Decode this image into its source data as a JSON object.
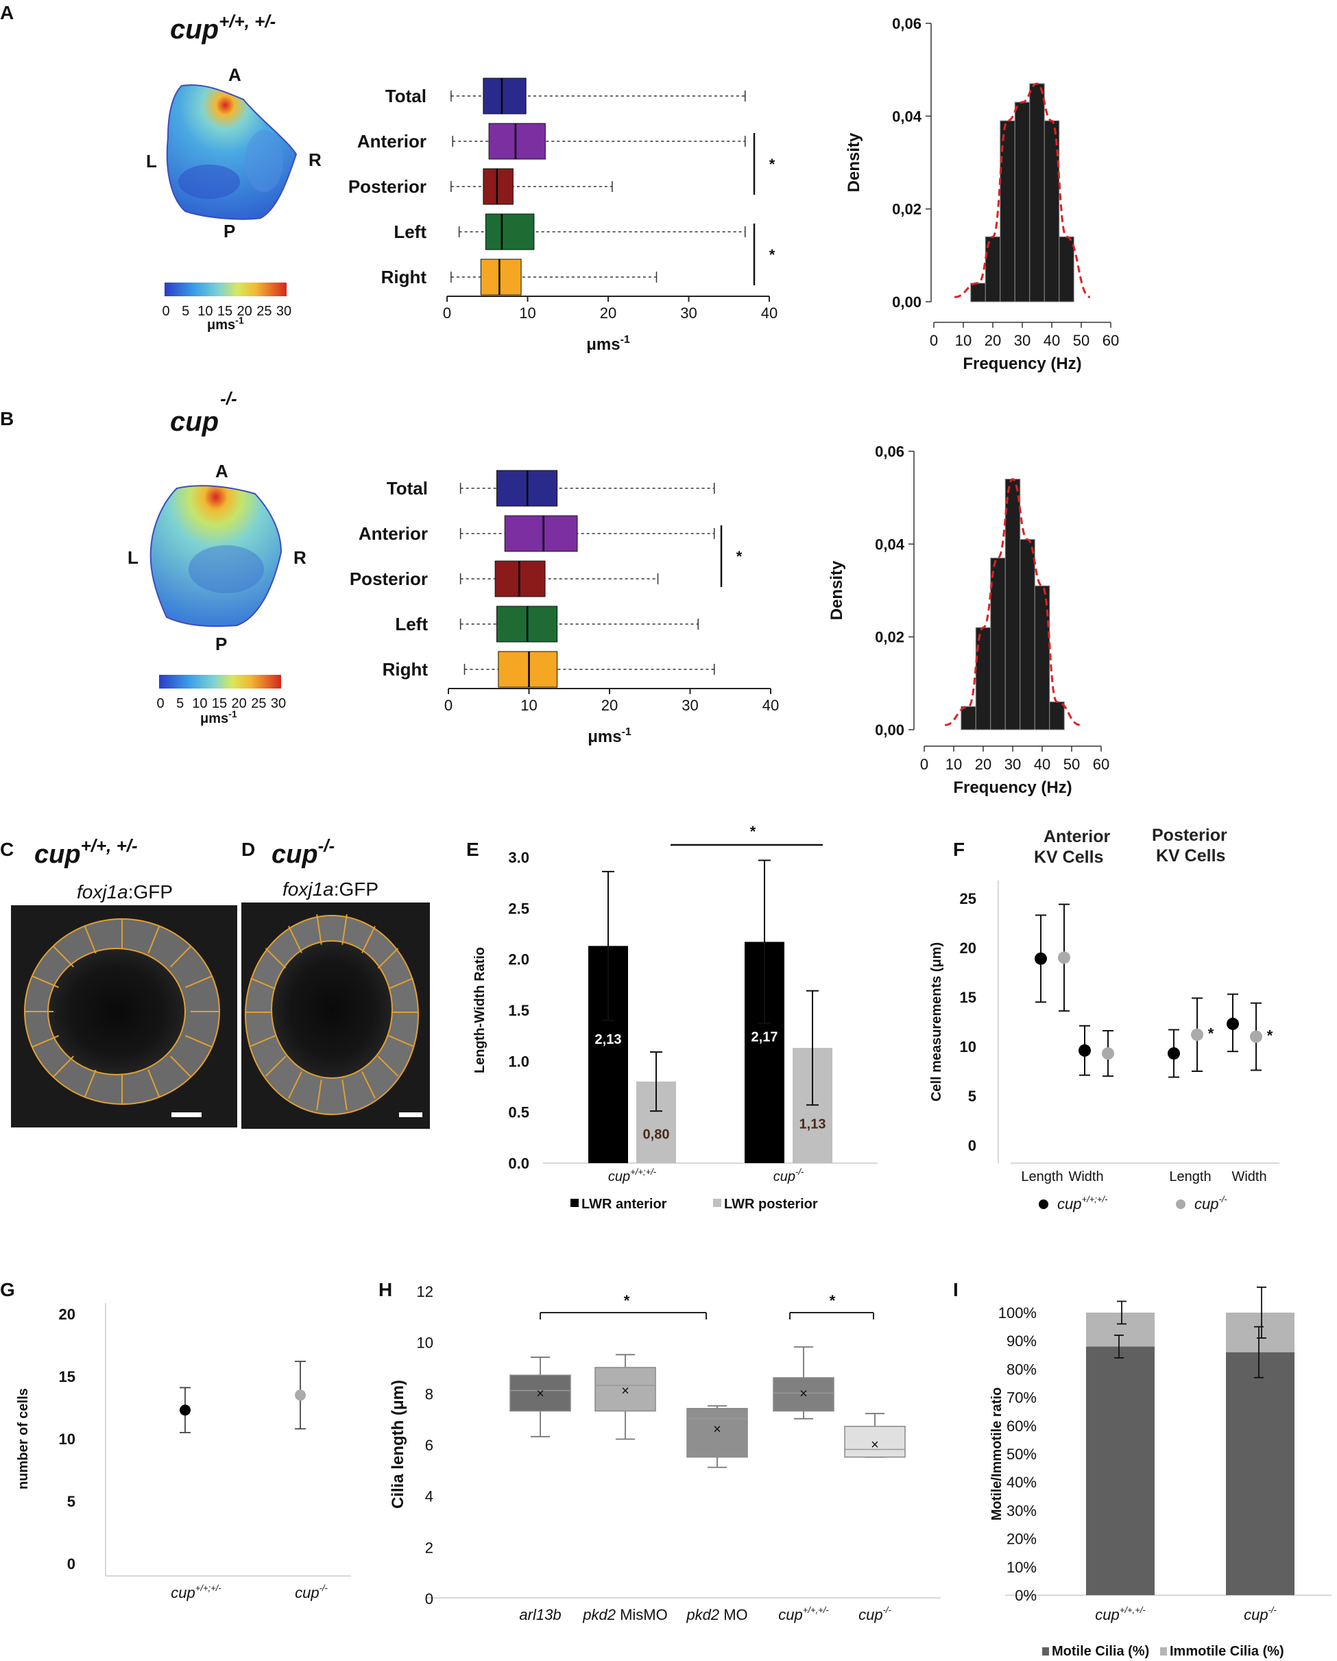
{
  "panels": {
    "A": {
      "label": "A",
      "genotype_base": "cup",
      "genotype_sup": "+/+, +/-",
      "heatmap": {
        "dir_top": "A",
        "dir_bottom": "P",
        "dir_left": "L",
        "dir_right": "R",
        "scale_ticks": [
          "0",
          "5",
          "10",
          "15",
          "20",
          "25",
          "30"
        ],
        "scale_unit": "μms",
        "scale_unit_sup": "-1"
      }
    },
    "B": {
      "label": "B",
      "genotype_base": "cup",
      "genotype_sup": "-/-",
      "heatmap": {
        "dir_top": "A",
        "dir_bottom": "P",
        "dir_left": "L",
        "dir_right": "R",
        "scale_ticks": [
          "0",
          "5",
          "10",
          "15",
          "20",
          "25",
          "30"
        ],
        "scale_unit": "μms",
        "scale_unit_sup": "-1"
      }
    },
    "C": {
      "label": "C",
      "genotype_base": "cup",
      "genotype_sup": "+/+, +/-",
      "marker": "foxj1a",
      "marker_suffix": ":GFP"
    },
    "D": {
      "label": "D",
      "genotype_base": "cup",
      "genotype_sup": "-/-",
      "marker": "foxj1a",
      "marker_suffix": ":GFP"
    },
    "E": {
      "label": "E"
    },
    "F": {
      "label": "F",
      "heading_anterior_1": "Anterior",
      "heading_anterior_2": "KV Cells",
      "heading_posterior_1": "Posterior",
      "heading_posterior_2": "KV Cells"
    },
    "G": {
      "label": "G"
    },
    "H": {
      "label": "H"
    },
    "I": {
      "label": "I"
    }
  },
  "chart_data": [
    {
      "id": "A_boxplot",
      "type": "boxplot",
      "categories": [
        "Total",
        "Anterior",
        "Posterior",
        "Left",
        "Right"
      ],
      "colors": [
        "#2a2a8c",
        "#7b2fa0",
        "#8b1a1a",
        "#1e6b34",
        "#f5a623"
      ],
      "whisker_low": [
        0.5,
        0.7,
        0.5,
        1.5,
        0.5
      ],
      "q1": [
        4.5,
        5.2,
        4.5,
        4.8,
        4.2
      ],
      "median": [
        6.8,
        8.5,
        6.2,
        6.8,
        6.5
      ],
      "q3": [
        9.8,
        12.2,
        8.2,
        10.8,
        9.2
      ],
      "whisker_high": [
        37,
        37,
        20.5,
        37,
        26
      ],
      "xlim": [
        0,
        40
      ],
      "xticks": [
        "0",
        "10",
        "20",
        "30",
        "40"
      ],
      "xlabel": "μms",
      "xlabel_sup": "-1",
      "significance": [
        {
          "pair": [
            "Anterior",
            "Posterior"
          ],
          "mark": "*"
        },
        {
          "pair": [
            "Left",
            "Right"
          ],
          "mark": "*"
        }
      ]
    },
    {
      "id": "A_histogram",
      "type": "bar",
      "x": [
        15,
        20,
        25,
        30,
        35,
        40,
        45
      ],
      "bin_width": 5,
      "values": [
        0.004,
        0.014,
        0.039,
        0.043,
        0.047,
        0.039,
        0.014
      ],
      "fit_curve": true,
      "xlim": [
        0,
        60
      ],
      "ylim": [
        0,
        0.06
      ],
      "xticks": [
        "0",
        "10",
        "20",
        "30",
        "40",
        "50",
        "60"
      ],
      "yticks": [
        "0,00",
        "0,02",
        "0,04",
        "0,06"
      ],
      "xlabel": "Frequency (Hz)",
      "ylabel": "Density"
    },
    {
      "id": "B_boxplot",
      "type": "boxplot",
      "categories": [
        "Total",
        "Anterior",
        "Posterior",
        "Left",
        "Right"
      ],
      "colors": [
        "#2a2a8c",
        "#7b2fa0",
        "#8b1a1a",
        "#1e6b34",
        "#f5a623"
      ],
      "whisker_low": [
        1.5,
        1.5,
        1.5,
        1.5,
        2
      ],
      "q1": [
        6,
        7,
        5.8,
        6,
        6.2
      ],
      "median": [
        9.8,
        11.8,
        8.8,
        9.8,
        10
      ],
      "q3": [
        13.5,
        16,
        12,
        13.5,
        13.5
      ],
      "whisker_high": [
        33,
        33,
        26,
        31,
        33
      ],
      "xlim": [
        0,
        40
      ],
      "xticks": [
        "0",
        "10",
        "20",
        "30",
        "40"
      ],
      "xlabel": "μms",
      "xlabel_sup": "-1",
      "significance": [
        {
          "pair": [
            "Anterior",
            "Posterior"
          ],
          "mark": "*"
        }
      ]
    },
    {
      "id": "B_histogram",
      "type": "bar",
      "x": [
        15,
        20,
        25,
        30,
        35,
        40,
        45
      ],
      "bin_width": 5,
      "values": [
        0.005,
        0.022,
        0.037,
        0.054,
        0.041,
        0.031,
        0.006
      ],
      "fit_curve": true,
      "xlim": [
        0,
        60
      ],
      "ylim": [
        0,
        0.06
      ],
      "xticks": [
        "0",
        "10",
        "20",
        "30",
        "40",
        "50",
        "60"
      ],
      "yticks": [
        "0,00",
        "0,02",
        "0,04",
        "0,06"
      ],
      "xlabel": "Frequency (Hz)",
      "ylabel": "Density"
    },
    {
      "id": "E_bar",
      "type": "bar",
      "groups": [
        {
          "base": "cup",
          "sup": "+/+;+/-"
        },
        {
          "base": "cup",
          "sup": "-/-"
        }
      ],
      "series": [
        {
          "name": "LWR anterior",
          "color": "#000000",
          "values": [
            2.13,
            2.17
          ],
          "labels": [
            "2,13",
            "2,17"
          ],
          "err": [
            0.73,
            0.8
          ]
        },
        {
          "name": "LWR posterior",
          "color": "#bfbfbf",
          "values": [
            0.8,
            1.13
          ],
          "labels": [
            "0,80",
            "1,13"
          ],
          "err": [
            0.29,
            0.56
          ]
        }
      ],
      "ylim": [
        0,
        3
      ],
      "yticks": [
        "0.0",
        "0.5",
        "1.0",
        "1.5",
        "2.0",
        "2.5",
        "3.0"
      ],
      "ylabel": "Length-Width Ratio",
      "significance": "*"
    },
    {
      "id": "F_dots",
      "type": "scatter",
      "categories": [
        "Length",
        "Width",
        "Length",
        "Width"
      ],
      "series": [
        {
          "name_base": "cup",
          "name_sup": "+/+;+/-",
          "color": "#000000",
          "values": [
            18.9,
            9.6,
            9.3,
            12.3
          ],
          "err_low": [
            4.4,
            2.5,
            2.4,
            2.8
          ],
          "err_high": [
            4.4,
            2.5,
            2.4,
            3.0
          ]
        },
        {
          "name_base": "cup",
          "name_sup": "-/-",
          "color": "#aaaaaa",
          "values": [
            19,
            9.3,
            11.2,
            11.0
          ],
          "err_low": [
            5.4,
            2.3,
            3.7,
            3.4
          ],
          "err_high": [
            5.4,
            2.3,
            3.7,
            3.4
          ]
        }
      ],
      "stars": [
        "",
        "",
        "*",
        "*"
      ],
      "ylim": [
        0,
        25
      ],
      "yticks": [
        "0",
        "5",
        "10",
        "15",
        "20",
        "25"
      ],
      "ylabel": "Cell measurements (μm)"
    },
    {
      "id": "G_dots",
      "type": "scatter",
      "categories": [
        {
          "base": "cup",
          "sup": "+/+;+/-"
        },
        {
          "base": "cup",
          "sup": "-/-"
        }
      ],
      "values": [
        12.3,
        13.5
      ],
      "err": [
        1.8,
        2.7
      ],
      "colors": [
        "#000000",
        "#aaaaaa"
      ],
      "ylim": [
        0,
        20
      ],
      "yticks": [
        "0",
        "5",
        "10",
        "15",
        "20"
      ],
      "ylabel": "number of cells"
    },
    {
      "id": "H_boxplot",
      "type": "boxplot",
      "categories": [
        {
          "italic": "arl13b",
          "rest": ""
        },
        {
          "italic": "pkd2",
          "rest": " MisMO"
        },
        {
          "italic": "pkd2",
          "rest": " MO"
        },
        {
          "italic": "cup",
          "sup": "+/+,+/-"
        },
        {
          "italic": "cup",
          "sup": "-/-"
        }
      ],
      "colors": [
        "#6e6e6e",
        "#b0b0b0",
        "#8f8f8f",
        "#808080",
        "#e0e0e0"
      ],
      "whisker_low": [
        6.3,
        6.2,
        5.1,
        7.0,
        5.5
      ],
      "q1": [
        7.3,
        7.3,
        5.5,
        7.3,
        5.5
      ],
      "median": [
        8.1,
        8.3,
        7.0,
        8.0,
        5.8
      ],
      "q3": [
        8.7,
        9.0,
        7.4,
        8.6,
        6.7
      ],
      "whisker_high": [
        9.4,
        9.5,
        7.5,
        9.8,
        7.2
      ],
      "mean": [
        8.0,
        8.1,
        6.6,
        8.0,
        6.0
      ],
      "ylim": [
        0,
        12
      ],
      "yticks": [
        "0",
        "2",
        "4",
        "6",
        "8",
        "10",
        "12"
      ],
      "ylabel": "Cilia length (μm)",
      "significance": [
        "*",
        "*"
      ]
    },
    {
      "id": "I_stacked",
      "type": "bar",
      "categories": [
        {
          "base": "cup",
          "sup": "+/+,+/-"
        },
        {
          "base": "cup",
          "sup": "-/-"
        }
      ],
      "series": [
        {
          "name": "Motile Cilia (%)",
          "color": "#606060",
          "values": [
            88,
            86
          ],
          "err": [
            4,
            9
          ]
        },
        {
          "name": "Immotile Cilia (%)",
          "color": "#b5b5b5",
          "values": [
            12,
            14
          ],
          "err": [
            4,
            9
          ]
        }
      ],
      "ylim": [
        0,
        100
      ],
      "yticks": [
        "0%",
        "10%",
        "20%",
        "30%",
        "40%",
        "50%",
        "60%",
        "70%",
        "80%",
        "90%",
        "100%"
      ],
      "ylabel": "Motile/Immotile ratio"
    }
  ]
}
